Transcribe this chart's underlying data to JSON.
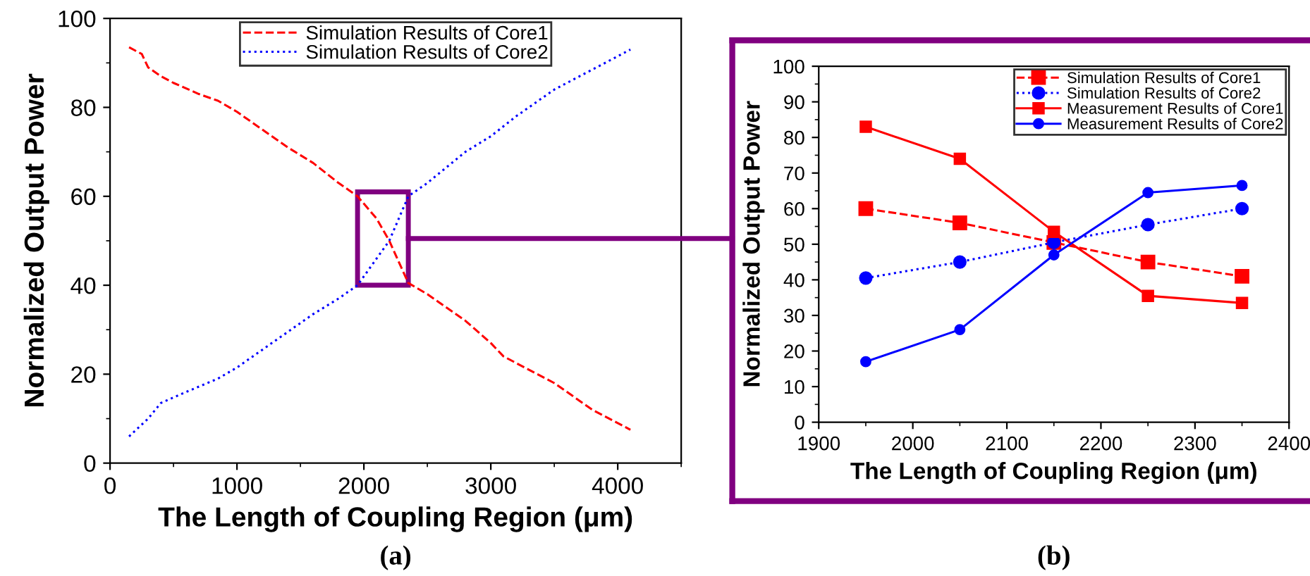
{
  "chart_data": [
    {
      "type": "line",
      "xlabel": "The Length of Coupling Region (μm)",
      "ylabel": "Normalized Output Power",
      "xlim": [
        0,
        4500
      ],
      "xticks": [
        0,
        1000,
        2000,
        3000,
        4000
      ],
      "ylim": [
        0,
        100
      ],
      "yticks": [
        0,
        20,
        40,
        60,
        80,
        100
      ],
      "legend": "top",
      "grid": false,
      "marker": "none",
      "annotations": [
        "(a)"
      ],
      "series": [
        {
          "name": "Simulation Results of Core1",
          "color": "#ff0000",
          "line_style": "dashed",
          "x": [
            150,
            250,
            300,
            400,
            500,
            700,
            850,
            1000,
            1200,
            1400,
            1600,
            1800,
            1950,
            2100,
            2200,
            2350,
            2500,
            2800,
            3000,
            3100,
            3500,
            3800,
            4100
          ],
          "values": [
            93.5,
            92,
            89,
            87,
            85.5,
            83,
            81.5,
            79,
            75,
            71,
            67.5,
            63,
            60,
            55,
            50,
            40.5,
            38,
            32,
            27,
            24,
            18,
            12,
            7.5
          ]
        },
        {
          "name": "Simulation Results of Core2",
          "color": "#0000ff",
          "line_style": "dotted",
          "x": [
            150,
            300,
            400,
            600,
            850,
            1000,
            1200,
            1400,
            1600,
            1800,
            1950,
            2100,
            2200,
            2350,
            2500,
            2800,
            3000,
            3200,
            3500,
            3800,
            4100
          ],
          "values": [
            6,
            10,
            13.5,
            16,
            19,
            21.5,
            25.5,
            29.5,
            33.5,
            37,
            40,
            46,
            50,
            60,
            63,
            70,
            73.5,
            78,
            84,
            88.5,
            93
          ]
        }
      ]
    },
    {
      "type": "line",
      "xlabel": "The Length of Coupling Region (μm)",
      "ylabel": "Normalized Output Power",
      "xlim": [
        1900,
        2400
      ],
      "xticks": [
        1900,
        2000,
        2100,
        2200,
        2300,
        2400
      ],
      "ylim": [
        0,
        100
      ],
      "yticks": [
        0,
        10,
        20,
        30,
        40,
        50,
        60,
        70,
        80,
        90,
        100
      ],
      "legend": "top right",
      "grid": false,
      "annotations": [
        "(b)"
      ],
      "x": [
        1950,
        2050,
        2150,
        2250,
        2350
      ],
      "series": [
        {
          "name": "Simulation Results of Core1",
          "color": "#ff0000",
          "line_style": "dashed",
          "marker": "square",
          "values": [
            60,
            56,
            50.5,
            45,
            41
          ]
        },
        {
          "name": "Simulation Results of Core2",
          "color": "#0000ff",
          "line_style": "dotted",
          "marker": "circle",
          "values": [
            40.5,
            45,
            50.5,
            55.5,
            60
          ]
        },
        {
          "name": "Measurement Results of Core1",
          "color": "#ff0000",
          "line_style": "solid",
          "marker": "square",
          "values": [
            83,
            74,
            53.5,
            35.5,
            33.5
          ]
        },
        {
          "name": "Measurement Results of Core2",
          "color": "#0000ff",
          "line_style": "solid",
          "marker": "circle",
          "values": [
            17,
            26,
            47,
            64.5,
            66.5
          ]
        }
      ]
    }
  ]
}
